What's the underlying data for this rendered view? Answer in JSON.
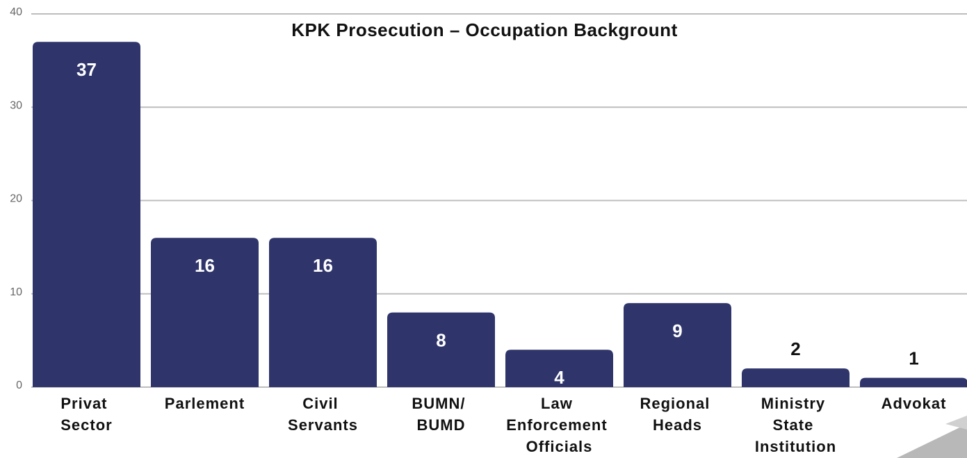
{
  "chart_data": {
    "type": "bar",
    "title": "KPK Prosecution – Occupation Backgrount",
    "categories": [
      "Privat Sector",
      "Parlement",
      "Civil Servants",
      "BUMN/ BUMD",
      "Law Enforcement Officials",
      "Regional Heads",
      "Ministry State Institution",
      "Advokat"
    ],
    "values": [
      37,
      16,
      16,
      8,
      4,
      9,
      2,
      1
    ],
    "color": "#2f356b",
    "ylim": [
      0,
      40
    ],
    "yticks": [
      0,
      10,
      20,
      30,
      40
    ],
    "grid": true
  }
}
